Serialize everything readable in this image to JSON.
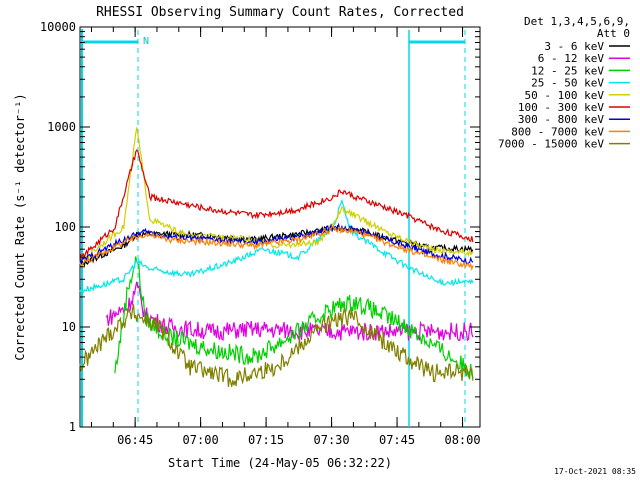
{
  "chart_data": {
    "type": "line",
    "title": "RHESSI Observing Summary Count Rates, Corrected",
    "xlabel": "Start Time (24-May-05 06:32:22)",
    "ylabel": "Corrected Count Rate (s⁻¹ detector⁻¹)",
    "y_scale": "log",
    "ylim": [
      1,
      10000
    ],
    "y_ticks": [
      {
        "v": 1,
        "label": "1"
      },
      {
        "v": 10,
        "label": "10"
      },
      {
        "v": 100,
        "label": "100"
      },
      {
        "v": 1000,
        "label": "1000"
      },
      {
        "v": 10000,
        "label": "10000"
      }
    ],
    "x_unit": "minutes after 06:32:22 (time axis)",
    "xlim": [
      0,
      91.63
    ],
    "x_ticks": [
      {
        "v": 12.63,
        "label": "06:45"
      },
      {
        "v": 27.63,
        "label": "07:00"
      },
      {
        "v": 42.63,
        "label": "07:15"
      },
      {
        "v": 57.63,
        "label": "07:30"
      },
      {
        "v": 72.63,
        "label": "07:45"
      },
      {
        "v": 87.63,
        "label": "08:00"
      }
    ],
    "legend_header": [
      "Det 1,3,4,5,6,9,",
      "Att 0"
    ],
    "legend_position": "right",
    "annotations": {
      "night_marker": "N",
      "timestamp": "17-Oct-2021 08:35"
    },
    "series": [
      {
        "name": "3 - 6 keV",
        "color": "#000000",
        "points": [
          [
            0,
            42
          ],
          [
            10,
            65
          ],
          [
            13,
            85
          ],
          [
            20,
            85
          ],
          [
            30,
            82
          ],
          [
            40,
            75
          ],
          [
            50,
            85
          ],
          [
            57,
            95
          ],
          [
            62,
            98
          ],
          [
            70,
            78
          ],
          [
            80,
            62
          ],
          [
            90,
            60
          ]
        ]
      },
      {
        "name": "6 - 12 keV",
        "color": "#e000e0",
        "points": [
          [
            6,
            12
          ],
          [
            11,
            16
          ],
          [
            13,
            25
          ],
          [
            15,
            13
          ],
          [
            20,
            10
          ],
          [
            30,
            9
          ],
          [
            40,
            9.5
          ],
          [
            55,
            9
          ],
          [
            63,
            9
          ],
          [
            80,
            9
          ],
          [
            90,
            9
          ]
        ]
      },
      {
        "name": "12 - 25 keV",
        "color": "#00d000",
        "points": [
          [
            8,
            3.5
          ],
          [
            11,
            25
          ],
          [
            13,
            50
          ],
          [
            15,
            12
          ],
          [
            20,
            8
          ],
          [
            30,
            6
          ],
          [
            40,
            5
          ],
          [
            50,
            9
          ],
          [
            57,
            15
          ],
          [
            63,
            18
          ],
          [
            75,
            10
          ],
          [
            90,
            3.5
          ]
        ]
      },
      {
        "name": "25 - 50 keV",
        "color": "#00e8e8",
        "points": [
          [
            0,
            23
          ],
          [
            10,
            30
          ],
          [
            13,
            45
          ],
          [
            16,
            38
          ],
          [
            25,
            33
          ],
          [
            35,
            45
          ],
          [
            42,
            60
          ],
          [
            50,
            50
          ],
          [
            58,
            100
          ],
          [
            60,
            180
          ],
          [
            62,
            90
          ],
          [
            75,
            40
          ],
          [
            82,
            28
          ],
          [
            90,
            28
          ]
        ]
      },
      {
        "name": "50 - 100 keV",
        "color": "#d0d000",
        "points": [
          [
            0,
            45
          ],
          [
            10,
            100
          ],
          [
            13,
            1000
          ],
          [
            16,
            120
          ],
          [
            25,
            80
          ],
          [
            35,
            80
          ],
          [
            45,
            65
          ],
          [
            55,
            70
          ],
          [
            60,
            150
          ],
          [
            63,
            130
          ],
          [
            70,
            90
          ],
          [
            80,
            60
          ],
          [
            90,
            55
          ]
        ]
      },
      {
        "name": "100 - 300 keV",
        "color": "#e00000",
        "points": [
          [
            0,
            48
          ],
          [
            8,
            100
          ],
          [
            13,
            600
          ],
          [
            16,
            200
          ],
          [
            30,
            150
          ],
          [
            40,
            130
          ],
          [
            50,
            150
          ],
          [
            58,
            200
          ],
          [
            60,
            230
          ],
          [
            63,
            200
          ],
          [
            75,
            130
          ],
          [
            82,
            95
          ],
          [
            90,
            75
          ]
        ]
      },
      {
        "name": "300 - 800 keV",
        "color": "#0000e0",
        "points": [
          [
            0,
            45
          ],
          [
            10,
            75
          ],
          [
            15,
            90
          ],
          [
            20,
            80
          ],
          [
            30,
            75
          ],
          [
            40,
            70
          ],
          [
            50,
            80
          ],
          [
            58,
            100
          ],
          [
            63,
            95
          ],
          [
            70,
            75
          ],
          [
            80,
            55
          ],
          [
            90,
            45
          ]
        ]
      },
      {
        "name": "800 - 7000 keV",
        "color": "#ff8000",
        "points": [
          [
            0,
            42
          ],
          [
            10,
            70
          ],
          [
            15,
            85
          ],
          [
            20,
            75
          ],
          [
            30,
            70
          ],
          [
            40,
            65
          ],
          [
            50,
            75
          ],
          [
            58,
            95
          ],
          [
            63,
            90
          ],
          [
            70,
            70
          ],
          [
            80,
            50
          ],
          [
            90,
            40
          ]
        ]
      },
      {
        "name": "7000 - 15000 keV",
        "color": "#808000",
        "points": [
          [
            0,
            4
          ],
          [
            6,
            8
          ],
          [
            12,
            14
          ],
          [
            18,
            10
          ],
          [
            25,
            4
          ],
          [
            35,
            3
          ],
          [
            45,
            4
          ],
          [
            55,
            10
          ],
          [
            62,
            13
          ],
          [
            70,
            7
          ],
          [
            80,
            3.5
          ],
          [
            90,
            3.5
          ]
        ]
      }
    ]
  }
}
